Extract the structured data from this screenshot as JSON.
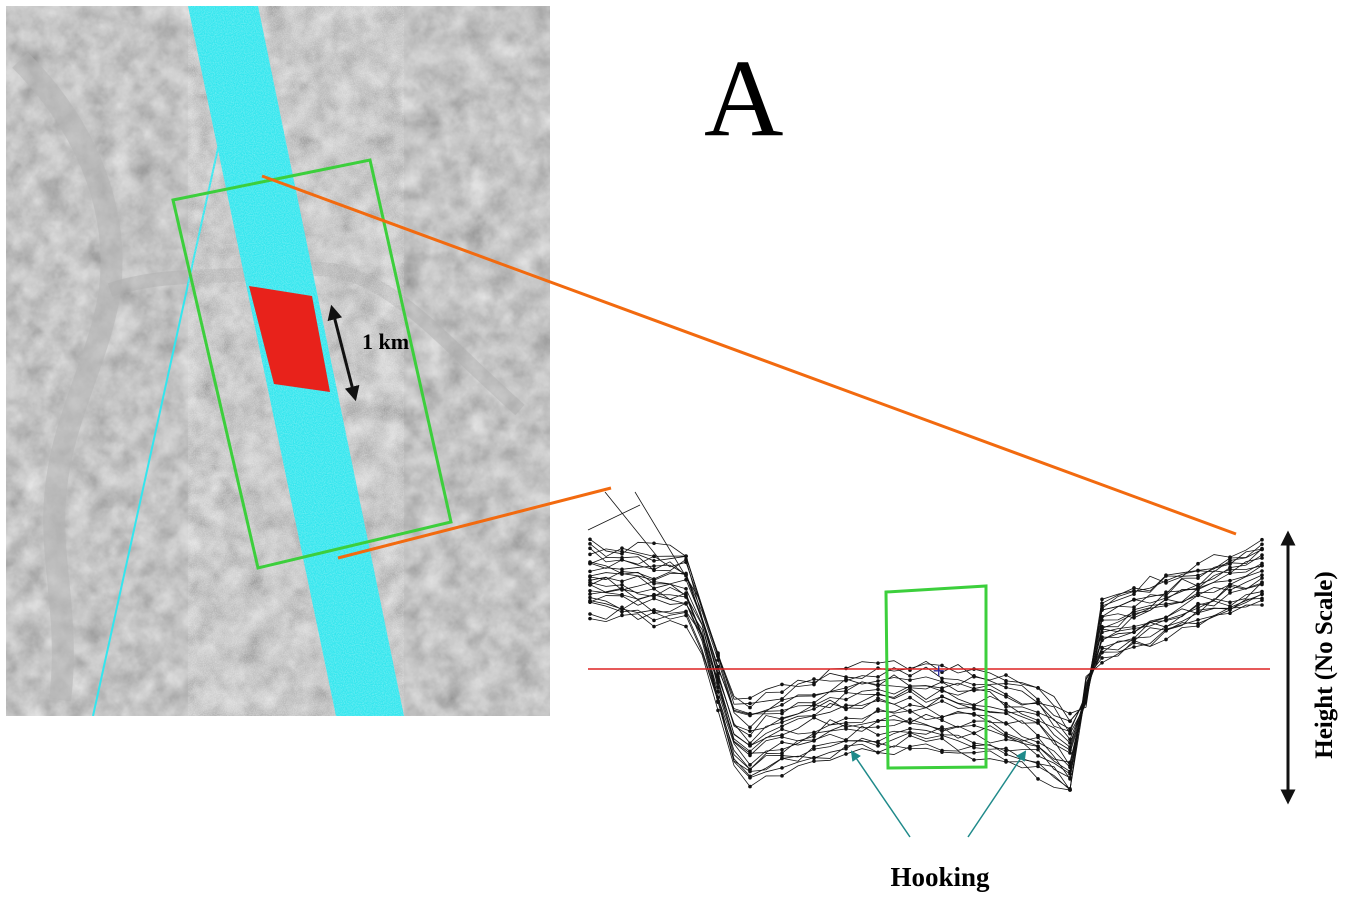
{
  "figure": {
    "panel_letter": "A",
    "scale_bar_label": "1 km",
    "height_axis_label": "Height (No Scale)",
    "annotation_label": "Hooking"
  },
  "colors": {
    "swath": "#33e6ee",
    "highlight_patch": "#e8221b",
    "selection_box": "#3ccf3c",
    "connector_lines": "#f26a0f",
    "reference_line": "#dd2222",
    "annotation_arrows": "#1f8a8a",
    "profile_lines": "#111111"
  },
  "icons": {
    "scale_arrow": "double-headed-arrow-icon",
    "height_arrow": "double-headed-arrow-icon"
  }
}
